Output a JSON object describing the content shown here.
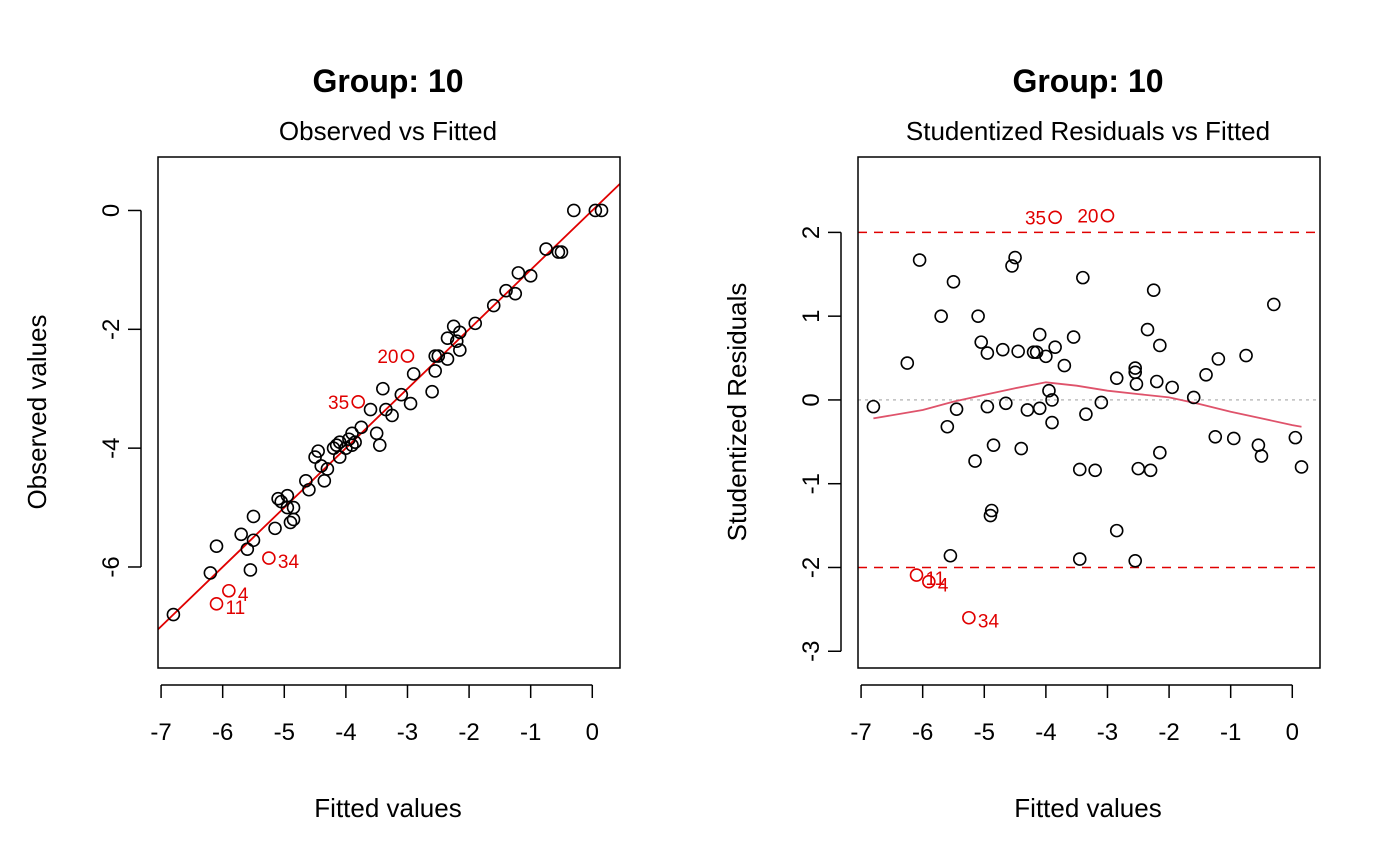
{
  "chart_data": [
    {
      "type": "scatter",
      "title": "Group: 10",
      "subtitle": "Observed vs Fitted",
      "xlabel": "Fitted values",
      "ylabel": "Observed values",
      "xlim": [
        -7.05,
        0.45
      ],
      "ylim": [
        -7.7,
        0.9
      ],
      "xticks": [
        -7,
        -6,
        -5,
        -4,
        -3,
        -2,
        -1,
        0
      ],
      "yticks": [
        -6,
        -4,
        -2,
        0
      ],
      "grid": false,
      "fit_line": {
        "x": [
          -7.05,
          0.45
        ],
        "y": [
          -7.05,
          0.45
        ],
        "color": "#e00000"
      },
      "point_color": "#000000",
      "highlight_color": "#e00000",
      "points": [
        {
          "x": -6.8,
          "y": -6.8
        },
        {
          "x": -6.2,
          "y": -6.1
        },
        {
          "x": -6.1,
          "y": -5.65
        },
        {
          "x": -5.7,
          "y": -5.45
        },
        {
          "x": -5.6,
          "y": -5.7
        },
        {
          "x": -5.5,
          "y": -5.55
        },
        {
          "x": -5.5,
          "y": -5.15
        },
        {
          "x": -5.55,
          "y": -6.05
        },
        {
          "x": -5.15,
          "y": -5.35
        },
        {
          "x": -5.1,
          "y": -4.85
        },
        {
          "x": -5.05,
          "y": -4.9
        },
        {
          "x": -4.95,
          "y": -4.8
        },
        {
          "x": -4.95,
          "y": -5.0
        },
        {
          "x": -4.9,
          "y": -5.25
        },
        {
          "x": -4.85,
          "y": -5.2
        },
        {
          "x": -4.85,
          "y": -5.0
        },
        {
          "x": -4.65,
          "y": -4.55
        },
        {
          "x": -4.6,
          "y": -4.7
        },
        {
          "x": -4.5,
          "y": -4.15
        },
        {
          "x": -4.45,
          "y": -4.05
        },
        {
          "x": -4.4,
          "y": -4.3
        },
        {
          "x": -4.35,
          "y": -4.55
        },
        {
          "x": -4.3,
          "y": -4.35
        },
        {
          "x": -4.2,
          "y": -4.0
        },
        {
          "x": -4.15,
          "y": -3.95
        },
        {
          "x": -4.1,
          "y": -3.9
        },
        {
          "x": -4.1,
          "y": -4.15
        },
        {
          "x": -4.0,
          "y": -4.0
        },
        {
          "x": -3.95,
          "y": -3.85
        },
        {
          "x": -3.9,
          "y": -3.95
        },
        {
          "x": -3.9,
          "y": -3.75
        },
        {
          "x": -3.85,
          "y": -3.9
        },
        {
          "x": -3.75,
          "y": -3.65
        },
        {
          "x": -3.6,
          "y": -3.35
        },
        {
          "x": -3.5,
          "y": -3.75
        },
        {
          "x": -3.45,
          "y": -3.95
        },
        {
          "x": -3.4,
          "y": -3.0
        },
        {
          "x": -3.35,
          "y": -3.35
        },
        {
          "x": -3.25,
          "y": -3.45
        },
        {
          "x": -3.1,
          "y": -3.1
        },
        {
          "x": -2.95,
          "y": -3.25
        },
        {
          "x": -2.9,
          "y": -2.75
        },
        {
          "x": -2.6,
          "y": -3.05
        },
        {
          "x": -2.55,
          "y": -2.7
        },
        {
          "x": -2.55,
          "y": -2.45
        },
        {
          "x": -2.5,
          "y": -2.45
        },
        {
          "x": -2.35,
          "y": -2.15
        },
        {
          "x": -2.35,
          "y": -2.5
        },
        {
          "x": -2.25,
          "y": -1.95
        },
        {
          "x": -2.2,
          "y": -2.2
        },
        {
          "x": -2.15,
          "y": -2.05
        },
        {
          "x": -2.15,
          "y": -2.35
        },
        {
          "x": -1.9,
          "y": -1.9
        },
        {
          "x": -1.6,
          "y": -1.6
        },
        {
          "x": -1.4,
          "y": -1.35
        },
        {
          "x": -1.25,
          "y": -1.4
        },
        {
          "x": -1.2,
          "y": -1.05
        },
        {
          "x": -1.0,
          "y": -1.1
        },
        {
          "x": -0.75,
          "y": -0.65
        },
        {
          "x": -0.55,
          "y": -0.7
        },
        {
          "x": -0.5,
          "y": -0.7
        },
        {
          "x": -0.3,
          "y": 0.0
        },
        {
          "x": 0.05,
          "y": 0.0
        },
        {
          "x": 0.15,
          "y": 0.0
        }
      ],
      "highlighted": [
        {
          "x": -3.0,
          "y": -2.45,
          "label": "20",
          "side": "left"
        },
        {
          "x": -3.8,
          "y": -3.22,
          "label": "35",
          "side": "left"
        },
        {
          "x": -5.25,
          "y": -5.85,
          "label": "34",
          "side": "right"
        },
        {
          "x": -5.9,
          "y": -6.4,
          "label": "4",
          "side": "right"
        },
        {
          "x": -6.1,
          "y": -6.62,
          "label": "11",
          "side": "right"
        }
      ]
    },
    {
      "type": "scatter",
      "title": "Group: 10",
      "subtitle": "Studentized Residuals vs Fitted",
      "xlabel": "Fitted values",
      "ylabel": "Studentized Residuals",
      "xlim": [
        -7.05,
        0.45
      ],
      "ylim": [
        -3.2,
        2.9
      ],
      "xticks": [
        -7,
        -6,
        -5,
        -4,
        -3,
        -2,
        -1,
        0
      ],
      "yticks": [
        -3,
        -2,
        -1,
        0,
        1,
        2
      ],
      "grid": false,
      "reference_lines": {
        "upper": 2,
        "lower": -2,
        "zero": 0,
        "bound_color": "#e00000",
        "zero_color": "#bebebe"
      },
      "smooth_line": {
        "color": "#df536b",
        "x": [
          -6.8,
          -6.0,
          -5.5,
          -5.0,
          -4.5,
          -4.0,
          -3.5,
          -3.0,
          -2.5,
          -2.0,
          -1.5,
          -1.0,
          -0.5,
          0.0,
          0.15
        ],
        "y": [
          -0.22,
          -0.12,
          -0.02,
          0.06,
          0.14,
          0.21,
          0.17,
          0.11,
          0.07,
          0.03,
          -0.05,
          -0.14,
          -0.22,
          -0.3,
          -0.32
        ]
      },
      "point_color": "#000000",
      "highlight_color": "#e00000",
      "points": [
        {
          "x": -6.8,
          "y": -0.08
        },
        {
          "x": -6.25,
          "y": 0.44
        },
        {
          "x": -6.05,
          "y": 1.67
        },
        {
          "x": -5.7,
          "y": 1.0
        },
        {
          "x": -5.6,
          "y": -0.32
        },
        {
          "x": -5.5,
          "y": 1.41
        },
        {
          "x": -5.45,
          "y": -0.11
        },
        {
          "x": -5.55,
          "y": -1.86
        },
        {
          "x": -5.15,
          "y": -0.73
        },
        {
          "x": -5.1,
          "y": 1.0
        },
        {
          "x": -5.05,
          "y": 0.69
        },
        {
          "x": -4.95,
          "y": 0.56
        },
        {
          "x": -4.95,
          "y": -0.08
        },
        {
          "x": -4.9,
          "y": -1.38
        },
        {
          "x": -4.88,
          "y": -1.32
        },
        {
          "x": -4.85,
          "y": -0.54
        },
        {
          "x": -4.7,
          "y": 0.6
        },
        {
          "x": -4.65,
          "y": -0.04
        },
        {
          "x": -4.55,
          "y": 1.6
        },
        {
          "x": -4.5,
          "y": 1.7
        },
        {
          "x": -4.45,
          "y": 0.58
        },
        {
          "x": -4.4,
          "y": -0.58
        },
        {
          "x": -4.3,
          "y": -0.12
        },
        {
          "x": -4.2,
          "y": 0.57
        },
        {
          "x": -4.15,
          "y": 0.57
        },
        {
          "x": -4.1,
          "y": 0.78
        },
        {
          "x": -4.1,
          "y": -0.1
        },
        {
          "x": -4.0,
          "y": 0.52
        },
        {
          "x": -3.95,
          "y": 0.11
        },
        {
          "x": -3.9,
          "y": 0.0
        },
        {
          "x": -3.9,
          "y": -0.27
        },
        {
          "x": -3.85,
          "y": 0.63
        },
        {
          "x": -3.7,
          "y": 0.41
        },
        {
          "x": -3.55,
          "y": 0.75
        },
        {
          "x": -3.45,
          "y": -0.83
        },
        {
          "x": -3.45,
          "y": -1.9
        },
        {
          "x": -3.4,
          "y": 1.46
        },
        {
          "x": -3.35,
          "y": -0.17
        },
        {
          "x": -3.2,
          "y": -0.84
        },
        {
          "x": -3.1,
          "y": -0.03
        },
        {
          "x": -2.85,
          "y": -1.56
        },
        {
          "x": -2.85,
          "y": 0.26
        },
        {
          "x": -2.55,
          "y": 0.38
        },
        {
          "x": -2.55,
          "y": 0.33
        },
        {
          "x": -2.53,
          "y": 0.19
        },
        {
          "x": -2.5,
          "y": -0.82
        },
        {
          "x": -2.55,
          "y": -1.92
        },
        {
          "x": -2.35,
          "y": 0.84
        },
        {
          "x": -2.3,
          "y": -0.84
        },
        {
          "x": -2.25,
          "y": 1.31
        },
        {
          "x": -2.2,
          "y": 0.22
        },
        {
          "x": -2.15,
          "y": -0.63
        },
        {
          "x": -2.15,
          "y": 0.65
        },
        {
          "x": -1.95,
          "y": 0.15
        },
        {
          "x": -1.6,
          "y": 0.03
        },
        {
          "x": -1.4,
          "y": 0.3
        },
        {
          "x": -1.25,
          "y": -0.44
        },
        {
          "x": -1.2,
          "y": 0.49
        },
        {
          "x": -0.95,
          "y": -0.46
        },
        {
          "x": -0.75,
          "y": 0.53
        },
        {
          "x": -0.55,
          "y": -0.54
        },
        {
          "x": -0.5,
          "y": -0.67
        },
        {
          "x": -0.3,
          "y": 1.14
        },
        {
          "x": 0.05,
          "y": -0.45
        },
        {
          "x": 0.15,
          "y": -0.8
        }
      ],
      "highlighted": [
        {
          "x": -3.85,
          "y": 2.18,
          "label": "35",
          "side": "left"
        },
        {
          "x": -3.0,
          "y": 2.2,
          "label": "20",
          "side": "left"
        },
        {
          "x": -6.1,
          "y": -2.09,
          "label": "11",
          "side": "right"
        },
        {
          "x": -5.9,
          "y": -2.17,
          "label": "4",
          "side": "right"
        },
        {
          "x": -5.25,
          "y": -2.6,
          "label": "34",
          "side": "right"
        }
      ]
    }
  ]
}
